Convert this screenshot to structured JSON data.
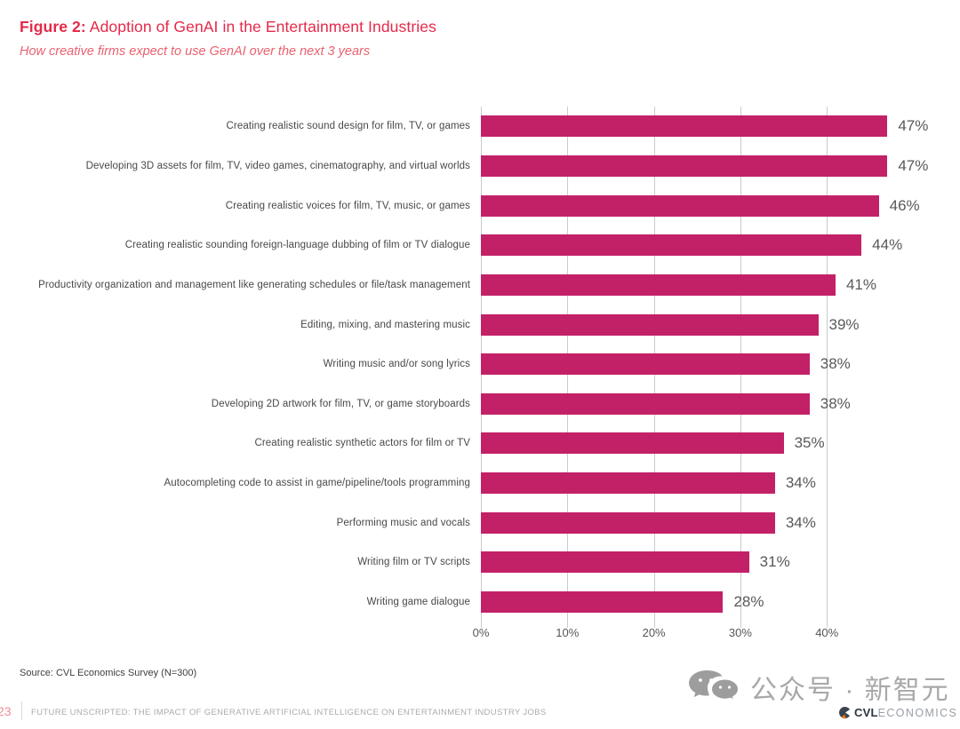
{
  "title": {
    "prefix": "Figure 2:",
    "rest": " Adoption of GenAI in the Entertainment Industries",
    "subtitle": "How creative firms expect to use GenAI over the next 3 years"
  },
  "chart_data": {
    "type": "bar",
    "orientation": "horizontal",
    "title": "Adoption of GenAI in the Entertainment Industries",
    "subtitle": "How creative firms expect to use GenAI over the next 3 years",
    "categories": [
      "Creating realistic sound design for film, TV, or games",
      "Developing 3D assets for film, TV, video games, cinematography, and virtual worlds",
      "Creating realistic voices for film, TV, music, or games",
      "Creating realistic sounding foreign-language dubbing of film or TV dialogue",
      "Productivity organization and management like generating schedules or file/task management",
      "Editing, mixing, and mastering music",
      "Writing music and/or song lyrics",
      "Developing 2D artwork for film, TV, or game storyboards",
      "Creating realistic synthetic actors for film or TV",
      "Autocompleting code to assist in game/pipeline/tools programming",
      "Performing music and vocals",
      "Writing film or TV scripts",
      "Writing game dialogue"
    ],
    "values": [
      47,
      47,
      46,
      44,
      41,
      39,
      38,
      38,
      35,
      34,
      34,
      31,
      28
    ],
    "value_labels": [
      "47%",
      "47%",
      "46%",
      "44%",
      "41%",
      "39%",
      "38%",
      "38%",
      "35%",
      "34%",
      "34%",
      "31%",
      "28%"
    ],
    "x_tick_values": [
      0,
      10,
      20,
      30,
      40
    ],
    "x_tick_labels": [
      "0%",
      "10%",
      "20%",
      "30%",
      "40%"
    ],
    "xlim": [
      0,
      48.3
    ],
    "grid": true,
    "legend": false,
    "bar_color": "#C32167"
  },
  "source": "Source: CVL Economics Survey (N=300)",
  "footer": {
    "page_number": "23",
    "text": "FUTURE UNSCRIPTED: THE IMPACT OF GENERATIVE ARTIFICIAL INTELLIGENCE ON ENTERTAINMENT INDUSTRY JOBS"
  },
  "watermark": {
    "icon": "wechat-icon",
    "text": "公众号 · 新智元"
  },
  "brand": {
    "bold": "CVL",
    "light": "ECONOMICS"
  },
  "colors": {
    "bar": "#C32167",
    "title": "#E5294A",
    "subtitle": "#E8626F",
    "gridline": "#CBCBCE",
    "value_label": "#57585A",
    "category_label": "#48484A",
    "footer_page": "#EE8E96",
    "watermark_gray": "#A8A8A8"
  }
}
